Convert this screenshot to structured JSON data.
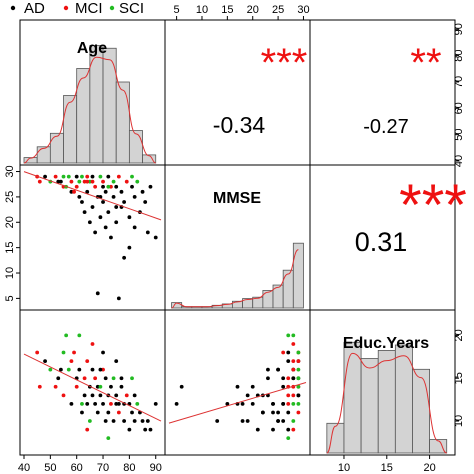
{
  "chart_data": {
    "type": "scatter",
    "title": "",
    "legend": {
      "placement": "top-left",
      "entries": [
        {
          "name": "AD",
          "color": "#000000"
        },
        {
          "name": "MCI",
          "color": "#ee1111"
        },
        {
          "name": "SCI",
          "color": "#22bb22"
        }
      ]
    },
    "variables": [
      "Age",
      "MMSE",
      "Educ.Years"
    ],
    "ranges": {
      "Age": [
        40,
        92
      ],
      "MMSE": [
        3.5,
        30.5
      ],
      "Educ.Years": [
        6.5,
        22.5
      ]
    },
    "ticks": {
      "Age": [
        "40",
        "50",
        "60",
        "70",
        "80",
        "90"
      ],
      "MMSE": [
        "5",
        "10",
        "15",
        "20",
        "25",
        "30"
      ],
      "Educ.Years": [
        "10",
        "15",
        "20"
      ]
    },
    "correlations": [
      {
        "pair": [
          "Age",
          "MMSE"
        ],
        "r": "-0.34",
        "stars": "***"
      },
      {
        "pair": [
          "Age",
          "Educ.Years"
        ],
        "r": "-0.27",
        "stars": "**"
      },
      {
        "pair": [
          "MMSE",
          "Educ.Years"
        ],
        "r": "0.31",
        "stars": "***"
      }
    ],
    "histograms": {
      "Age": {
        "edges": [
          40,
          45,
          50,
          55,
          60,
          65,
          70,
          75,
          80,
          85,
          90
        ],
        "heights": [
          0.04,
          0.12,
          0.22,
          0.5,
          0.7,
          0.87,
          0.85,
          0.6,
          0.24,
          0.06
        ]
      },
      "MMSE": {
        "edges": [
          4,
          6,
          8,
          10,
          12,
          14,
          16,
          18,
          20,
          22,
          24,
          26,
          28,
          30
        ],
        "heights": [
          0.04,
          0.01,
          0.01,
          0.01,
          0.02,
          0.03,
          0.05,
          0.07,
          0.08,
          0.13,
          0.17,
          0.28,
          0.48,
          0.82
        ]
      },
      "Educ.Years": {
        "edges": [
          8,
          10,
          12,
          14,
          16,
          18,
          20,
          22
        ],
        "heights": [
          0.22,
          0.82,
          0.7,
          0.76,
          0.8,
          0.62,
          0.1
        ]
      }
    },
    "points": [
      {
        "age": 45,
        "mmse": 29,
        "educ": 18,
        "g": "MCI"
      },
      {
        "age": 48,
        "mmse": 29,
        "educ": 17,
        "g": "AD"
      },
      {
        "age": 50,
        "mmse": 28,
        "educ": 16,
        "g": "SCI"
      },
      {
        "age": 52,
        "mmse": 29,
        "educ": 14,
        "g": "MCI"
      },
      {
        "age": 54,
        "mmse": 28,
        "educ": 16,
        "g": "AD"
      },
      {
        "age": 55,
        "mmse": 29,
        "educ": 18,
        "g": "SCI"
      },
      {
        "age": 55,
        "mmse": 27,
        "educ": 13,
        "g": "MCI"
      },
      {
        "age": 57,
        "mmse": 29,
        "educ": 16,
        "g": "SCI"
      },
      {
        "age": 58,
        "mmse": 28,
        "educ": 17,
        "g": "MCI"
      },
      {
        "age": 58,
        "mmse": 26,
        "educ": 12,
        "g": "AD"
      },
      {
        "age": 60,
        "mmse": 29,
        "educ": 15,
        "g": "AD"
      },
      {
        "age": 60,
        "mmse": 27,
        "educ": 14,
        "g": "MCI"
      },
      {
        "age": 61,
        "mmse": 25,
        "educ": 16,
        "g": "AD"
      },
      {
        "age": 62,
        "mmse": 29,
        "educ": 12,
        "g": "SCI"
      },
      {
        "age": 62,
        "mmse": 24,
        "educ": 11,
        "g": "AD"
      },
      {
        "age": 63,
        "mmse": 28,
        "educ": 15,
        "g": "MCI"
      },
      {
        "age": 63,
        "mmse": 22,
        "educ": 13,
        "g": "AD"
      },
      {
        "age": 64,
        "mmse": 29,
        "educ": 17,
        "g": "MCI"
      },
      {
        "age": 64,
        "mmse": 26,
        "educ": 12,
        "g": "AD"
      },
      {
        "age": 65,
        "mmse": 20,
        "educ": 14,
        "g": "AD"
      },
      {
        "age": 65,
        "mmse": 28,
        "educ": 10,
        "g": "SCI"
      },
      {
        "age": 66,
        "mmse": 23,
        "educ": 16,
        "g": "AD"
      },
      {
        "age": 66,
        "mmse": 29,
        "educ": 13,
        "g": "AD"
      },
      {
        "age": 67,
        "mmse": 27,
        "educ": 15,
        "g": "MCI"
      },
      {
        "age": 67,
        "mmse": 18,
        "educ": 12,
        "g": "AD"
      },
      {
        "age": 68,
        "mmse": 25,
        "educ": 11,
        "g": "AD"
      },
      {
        "age": 68,
        "mmse": 6,
        "educ": 14,
        "g": "AD"
      },
      {
        "age": 69,
        "mmse": 29,
        "educ": 14,
        "g": "SCI"
      },
      {
        "age": 69,
        "mmse": 21,
        "educ": 13,
        "g": "AD"
      },
      {
        "age": 70,
        "mmse": 24,
        "educ": 12,
        "g": "AD"
      },
      {
        "age": 70,
        "mmse": 28,
        "educ": 16,
        "g": "MCI"
      },
      {
        "age": 71,
        "mmse": 19,
        "educ": 10,
        "g": "AD"
      },
      {
        "age": 71,
        "mmse": 26,
        "educ": 15,
        "g": "AD"
      },
      {
        "age": 72,
        "mmse": 29,
        "educ": 13,
        "g": "AD"
      },
      {
        "age": 72,
        "mmse": 22,
        "educ": 11,
        "g": "AD"
      },
      {
        "age": 73,
        "mmse": 27,
        "educ": 12,
        "g": "MCI"
      },
      {
        "age": 73,
        "mmse": 17,
        "educ": 14,
        "g": "AD"
      },
      {
        "age": 74,
        "mmse": 25,
        "educ": 10,
        "g": "AD"
      },
      {
        "age": 74,
        "mmse": 28,
        "educ": 15,
        "g": "SCI"
      },
      {
        "age": 75,
        "mmse": 20,
        "educ": 12,
        "g": "AD"
      },
      {
        "age": 75,
        "mmse": 23,
        "educ": 13,
        "g": "AD"
      },
      {
        "age": 76,
        "mmse": 29,
        "educ": 11,
        "g": "MCI"
      },
      {
        "age": 76,
        "mmse": 5,
        "educ": 12,
        "g": "AD"
      },
      {
        "age": 77,
        "mmse": 26,
        "educ": 14,
        "g": "AD"
      },
      {
        "age": 78,
        "mmse": 13,
        "educ": 10,
        "g": "AD"
      },
      {
        "age": 78,
        "mmse": 24,
        "educ": 12,
        "g": "AD"
      },
      {
        "age": 79,
        "mmse": 28,
        "educ": 13,
        "g": "MCI"
      },
      {
        "age": 80,
        "mmse": 21,
        "educ": 9,
        "g": "AD"
      },
      {
        "age": 80,
        "mmse": 15,
        "educ": 12,
        "g": "AD"
      },
      {
        "age": 81,
        "mmse": 27,
        "educ": 11,
        "g": "AD"
      },
      {
        "age": 82,
        "mmse": 25,
        "educ": 10,
        "g": "AD"
      },
      {
        "age": 82,
        "mmse": 19,
        "educ": 13,
        "g": "AD"
      },
      {
        "age": 83,
        "mmse": 28,
        "educ": 12,
        "g": "SCI"
      },
      {
        "age": 84,
        "mmse": 22,
        "educ": 11,
        "g": "AD"
      },
      {
        "age": 85,
        "mmse": 26,
        "educ": 10,
        "g": "AD"
      },
      {
        "age": 86,
        "mmse": 24,
        "educ": 9,
        "g": "AD"
      },
      {
        "age": 87,
        "mmse": 18,
        "educ": 10,
        "g": "AD"
      },
      {
        "age": 88,
        "mmse": 27,
        "educ": 9,
        "g": "AD"
      },
      {
        "age": 90,
        "mmse": 17,
        "educ": 12,
        "g": "AD"
      },
      {
        "age": 56,
        "mmse": 27,
        "educ": 20,
        "g": "SCI"
      },
      {
        "age": 61,
        "mmse": 28,
        "educ": 20,
        "g": "SCI"
      },
      {
        "age": 66,
        "mmse": 28,
        "educ": 19,
        "g": "MCI"
      },
      {
        "age": 70,
        "mmse": 27,
        "educ": 18,
        "g": "AD"
      },
      {
        "age": 59,
        "mmse": 26,
        "educ": 18,
        "g": "MCI"
      },
      {
        "age": 75,
        "mmse": 27,
        "educ": 17,
        "g": "AD"
      },
      {
        "age": 53,
        "mmse": 28,
        "educ": 15,
        "g": "AD"
      },
      {
        "age": 69,
        "mmse": 25,
        "educ": 16,
        "g": "AD"
      },
      {
        "age": 77,
        "mmse": 23,
        "educ": 15,
        "g": "AD"
      },
      {
        "age": 64,
        "mmse": 28,
        "educ": 9,
        "g": "MCI"
      },
      {
        "age": 72,
        "mmse": 27,
        "educ": 8,
        "g": "SCI"
      },
      {
        "age": 46,
        "mmse": 28,
        "educ": 14,
        "g": "MCI"
      },
      {
        "age": 81,
        "mmse": 29,
        "educ": 15,
        "g": "SCI"
      }
    ]
  }
}
